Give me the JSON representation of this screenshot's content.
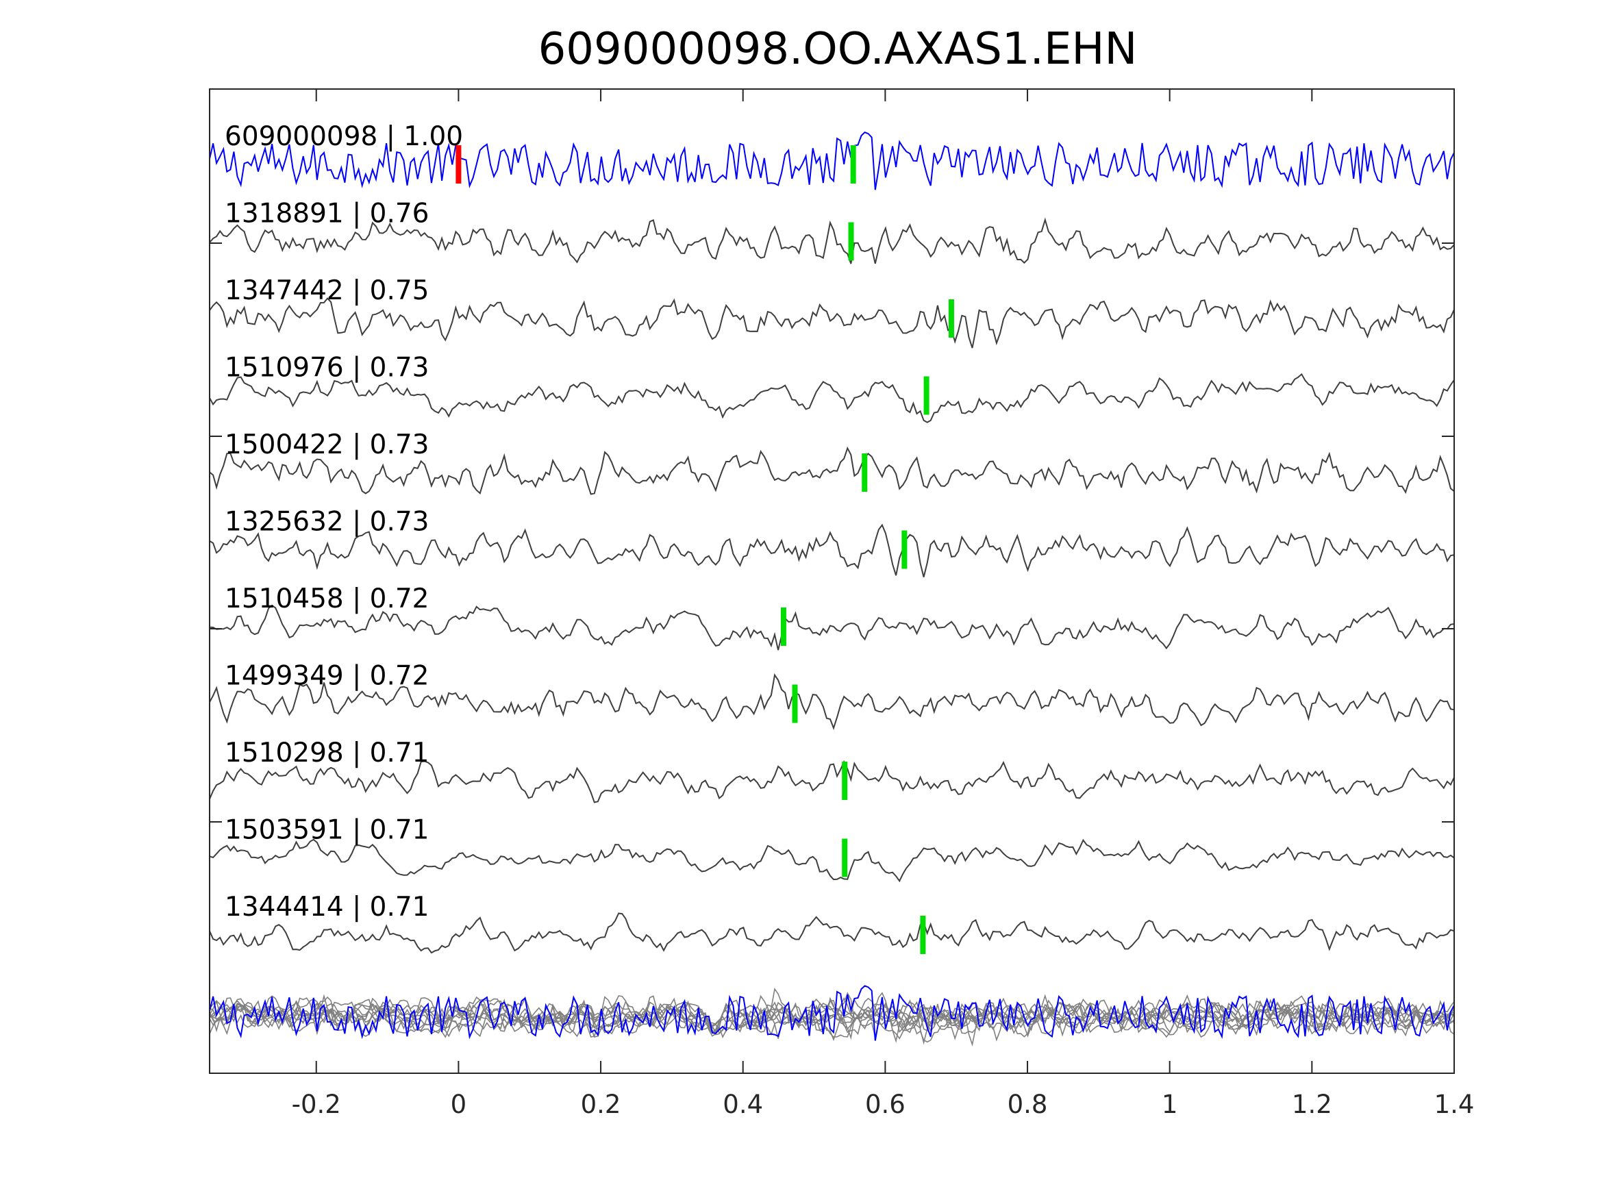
{
  "chart_data": {
    "type": "line",
    "title": "609000098.OO.AXAS1.EHN",
    "xlabel": "",
    "ylabel": "",
    "xlim": [
      -0.35,
      1.4
    ],
    "xticks": [
      -0.2,
      0,
      0.2,
      0.4,
      0.6,
      0.8,
      1,
      1.2,
      1.4
    ],
    "xtick_labels": [
      "-0.2",
      "0",
      "0.2",
      "0.4",
      "0.6",
      "0.8",
      "1",
      "1.2",
      "1.4"
    ],
    "grid": false,
    "colors": {
      "template": "#0000ff",
      "trace": "#3f3f3f",
      "overlay": "#808080",
      "template_pick": "#ff0000",
      "match_pick": "#00dd00",
      "axes": "#262626"
    },
    "template_pick_time": 0.0,
    "traces": [
      {
        "label": "609000098 | 1.00",
        "event_id": "609000098",
        "cc": 1.0,
        "pick_time": 0.555,
        "template": true
      },
      {
        "label": "1318891 | 0.76",
        "event_id": "1318891",
        "cc": 0.76,
        "pick_time": 0.552
      },
      {
        "label": "1347442 | 0.75",
        "event_id": "1347442",
        "cc": 0.75,
        "pick_time": 0.693
      },
      {
        "label": "1510976 | 0.73",
        "event_id": "1510976",
        "cc": 0.73,
        "pick_time": 0.658
      },
      {
        "label": "1500422 | 0.73",
        "event_id": "1500422",
        "cc": 0.73,
        "pick_time": 0.571
      },
      {
        "label": "1325632 | 0.73",
        "event_id": "1325632",
        "cc": 0.73,
        "pick_time": 0.627
      },
      {
        "label": "1510458 | 0.72",
        "event_id": "1510458",
        "cc": 0.72,
        "pick_time": 0.457
      },
      {
        "label": "1499349 | 0.72",
        "event_id": "1499349",
        "cc": 0.72,
        "pick_time": 0.473
      },
      {
        "label": "1510298 | 0.71",
        "event_id": "1510298",
        "cc": 0.71,
        "pick_time": 0.543
      },
      {
        "label": "1503591 | 0.71",
        "event_id": "1503591",
        "cc": 0.71,
        "pick_time": 0.543
      },
      {
        "label": "1344414 | 0.71",
        "event_id": "1344414",
        "cc": 0.71,
        "pick_time": 0.653
      }
    ]
  }
}
